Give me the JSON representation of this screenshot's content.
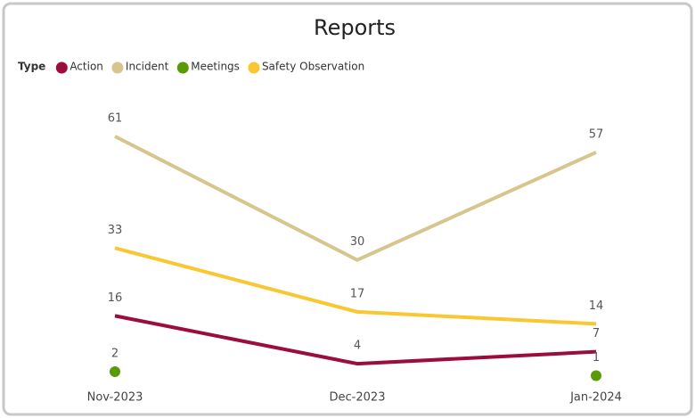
{
  "chart_data": {
    "type": "line",
    "title": "Reports",
    "legend_title": "Type",
    "categories": [
      "Nov-2023",
      "Dec-2023",
      "Jan-2024"
    ],
    "series": [
      {
        "name": "Action",
        "color": "#9b0d3a",
        "values": [
          16,
          4,
          7
        ]
      },
      {
        "name": "Incident",
        "color": "#d6c58d",
        "values": [
          61,
          30,
          57
        ]
      },
      {
        "name": "Meetings",
        "color": "#5a9a08",
        "values": [
          2,
          null,
          1
        ]
      },
      {
        "name": "Safety Observation",
        "color": "#f8c732",
        "values": [
          33,
          17,
          14
        ]
      }
    ],
    "legend": "top-left",
    "grid": false
  }
}
